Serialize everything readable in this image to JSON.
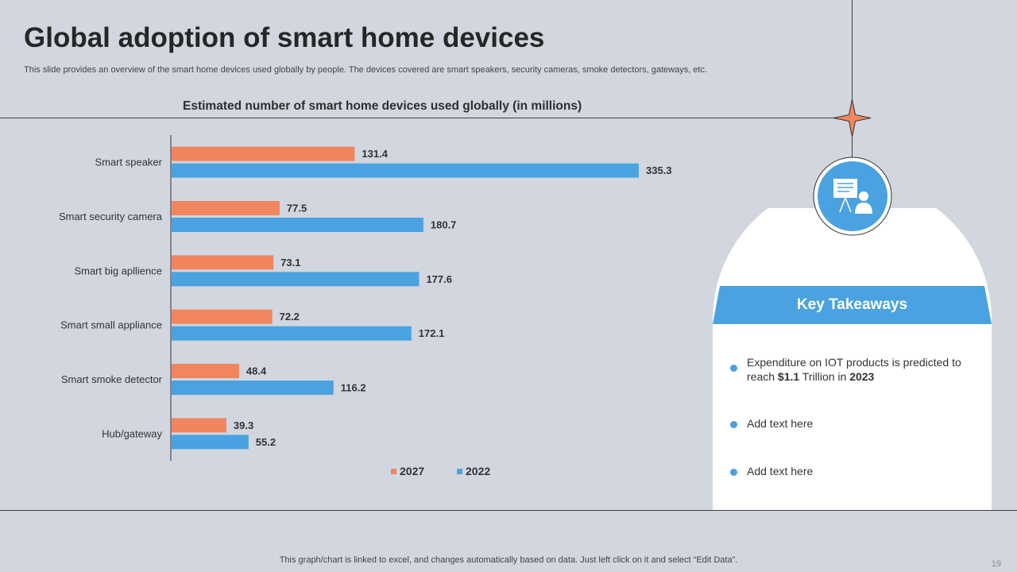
{
  "slide": {
    "title": "Global adoption of smart home devices",
    "subtitle": "This slide provides an overview of the smart home devices used globally by people. The devices covered are smart speakers, security cameras, smoke detectors, gateways, etc.",
    "footer": "This graph/chart is linked to excel,  and changes automatically based on data. Just left click on it and select “Edit Data”.",
    "page_number": "19"
  },
  "chart_data": {
    "type": "bar",
    "orientation": "horizontal",
    "title": "Estimated number of smart home devices used globally (in millions)",
    "categories": [
      "Smart speaker",
      "Smart security camera",
      "Smart big apllience",
      "Smart small appliance",
      "Smart smoke detector",
      "Hub/gateway"
    ],
    "series": [
      {
        "name": "2027",
        "color": "#f0855e",
        "values": [
          131.4,
          77.5,
          73.1,
          72.2,
          48.4,
          39.3
        ]
      },
      {
        "name": "2022",
        "color": "#4aa3e0",
        "values": [
          335.3,
          180.7,
          177.6,
          172.1,
          116.2,
          55.2
        ]
      }
    ],
    "legend_position": "bottom",
    "data_labels": true,
    "grid": false
  },
  "takeaways": {
    "heading": "Key Takeaways",
    "accent_color": "#4aa3e0",
    "icon": "presentation-icon",
    "items": [
      {
        "parts": [
          "Expenditure on IOT products is predicted to reach ",
          "$1.1",
          " Trillion  in ",
          "2023"
        ]
      },
      {
        "parts": [
          "Add text here"
        ]
      },
      {
        "parts": [
          "Add text here"
        ]
      }
    ]
  }
}
